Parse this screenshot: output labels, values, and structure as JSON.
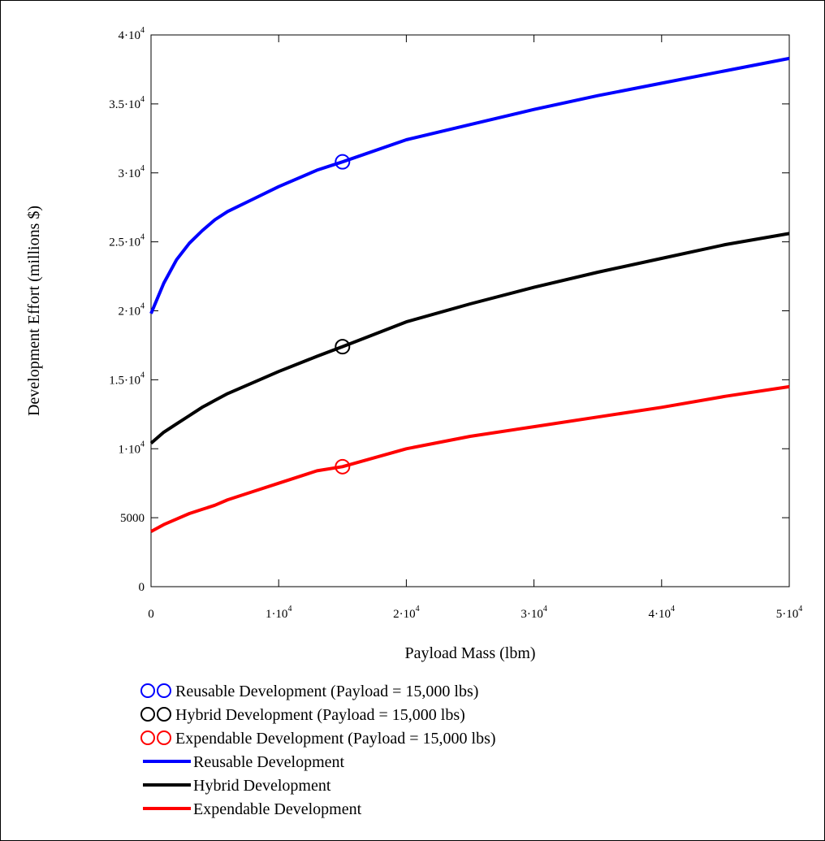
{
  "chart_data": {
    "type": "line",
    "xlabel": "Payload Mass (lbm)",
    "ylabel": "Development Effort (millions $)",
    "xlim": [
      0,
      50000
    ],
    "ylim": [
      0,
      40000
    ],
    "grid": false,
    "legend_position": "bottom",
    "x_ticks": [
      {
        "value": 0,
        "base": "0",
        "exp": ""
      },
      {
        "value": 10000,
        "base": "1·10",
        "exp": "4"
      },
      {
        "value": 20000,
        "base": "2·10",
        "exp": "4"
      },
      {
        "value": 30000,
        "base": "3·10",
        "exp": "4"
      },
      {
        "value": 40000,
        "base": "4·10",
        "exp": "4"
      },
      {
        "value": 50000,
        "base": "5·10",
        "exp": "4"
      }
    ],
    "y_ticks": [
      {
        "value": 0,
        "base": "0",
        "exp": ""
      },
      {
        "value": 5000,
        "base": "5000",
        "exp": ""
      },
      {
        "value": 10000,
        "base": "1·10",
        "exp": "4"
      },
      {
        "value": 15000,
        "base": "1.5·10",
        "exp": "4"
      },
      {
        "value": 20000,
        "base": "2·10",
        "exp": "4"
      },
      {
        "value": 25000,
        "base": "2.5·10",
        "exp": "4"
      },
      {
        "value": 30000,
        "base": "3·10",
        "exp": "4"
      },
      {
        "value": 35000,
        "base": "3.5·10",
        "exp": "4"
      },
      {
        "value": 40000,
        "base": "4·10",
        "exp": "4"
      }
    ],
    "x": [
      0,
      1000,
      2000,
      3000,
      4000,
      5000,
      6000,
      8000,
      10000,
      13000,
      15000,
      20000,
      25000,
      30000,
      35000,
      40000,
      45000,
      50000
    ],
    "series": [
      {
        "name": "Reusable Development",
        "color": "#0000ff",
        "values": [
          19800,
          22000,
          23700,
          24900,
          25800,
          26600,
          27200,
          28100,
          29000,
          30200,
          30800,
          32400,
          33500,
          34600,
          35600,
          36500,
          37400,
          38300
        ]
      },
      {
        "name": "Hybrid Development",
        "color": "#000000",
        "values": [
          10400,
          11200,
          11800,
          12400,
          13000,
          13500,
          14000,
          14800,
          15600,
          16700,
          17400,
          19200,
          20500,
          21700,
          22800,
          23800,
          24800,
          25600
        ]
      },
      {
        "name": "Expendable Development",
        "color": "#ff0000",
        "values": [
          4000,
          4500,
          4900,
          5300,
          5600,
          5900,
          6300,
          6900,
          7500,
          8400,
          8700,
          10000,
          10900,
          11600,
          12300,
          13000,
          13800,
          14500
        ]
      }
    ],
    "markers": [
      {
        "name": "Reusable Development (Payload = 15,000 lbs)",
        "color": "#0000ff",
        "x": 15000,
        "y": 30800
      },
      {
        "name": "Hybrid Development (Payload = 15,000 lbs)",
        "color": "#000000",
        "x": 15000,
        "y": 17400
      },
      {
        "name": "Expendable Development (Payload = 15,000 lbs)",
        "color": "#ff0000",
        "x": 15000,
        "y": 8700
      }
    ],
    "legend": [
      {
        "label": "Reusable Development (Payload = 15,000 lbs)",
        "kind": "circles",
        "color": "#0000ff"
      },
      {
        "label": "Hybrid Development (Payload = 15,000 lbs)",
        "kind": "circles",
        "color": "#000000"
      },
      {
        "label": "Expendable Development (Payload = 15,000 lbs)",
        "kind": "circles",
        "color": "#ff0000"
      },
      {
        "label": "Reusable Development",
        "kind": "line",
        "color": "#0000ff"
      },
      {
        "label": "Hybrid Development",
        "kind": "line",
        "color": "#000000"
      },
      {
        "label": "Expendable Development",
        "kind": "line",
        "color": "#ff0000"
      }
    ]
  }
}
